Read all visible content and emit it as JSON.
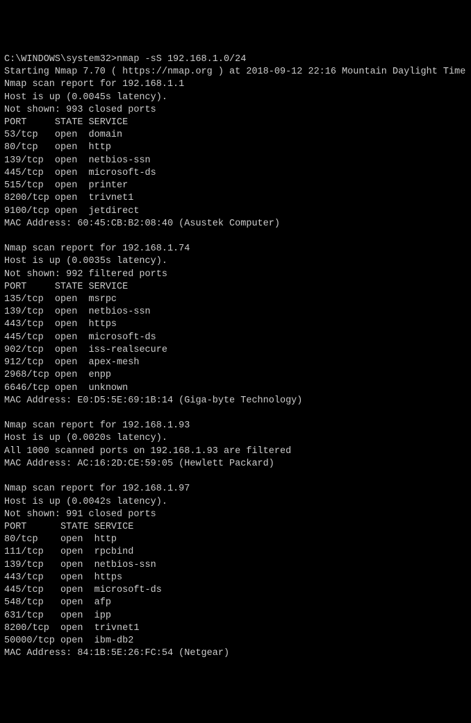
{
  "terminal": {
    "background_color": "#000000",
    "text_color": "#cccccc",
    "font_family": "Consolas, Courier New, monospace",
    "font_size": 13.5,
    "prompt": "C:\\WINDOWS\\system32>",
    "command": "nmap -sS 192.168.1.0/24",
    "start_line": "Starting Nmap 7.70 ( https://nmap.org ) at 2018-09-12 22:16 Mountain Daylight Time",
    "hosts": [
      {
        "report_line": "Nmap scan report for 192.168.1.1",
        "host_up": "Host is up (0.0045s latency).",
        "not_shown": "Not shown: 993 closed ports",
        "header": "PORT     STATE SERVICE",
        "ports": [
          {
            "port": "53/tcp   ",
            "state": "open  ",
            "service": "domain"
          },
          {
            "port": "80/tcp   ",
            "state": "open  ",
            "service": "http"
          },
          {
            "port": "139/tcp  ",
            "state": "open  ",
            "service": "netbios-ssn"
          },
          {
            "port": "445/tcp  ",
            "state": "open  ",
            "service": "microsoft-ds"
          },
          {
            "port": "515/tcp  ",
            "state": "open  ",
            "service": "printer"
          },
          {
            "port": "8200/tcp ",
            "state": "open  ",
            "service": "trivnet1"
          },
          {
            "port": "9100/tcp ",
            "state": "open  ",
            "service": "jetdirect"
          }
        ],
        "mac": "MAC Address: 60:45:CB:B2:08:40 (Asustek Computer)"
      },
      {
        "report_line": "Nmap scan report for 192.168.1.74",
        "host_up": "Host is up (0.0035s latency).",
        "not_shown": "Not shown: 992 filtered ports",
        "header": "PORT     STATE SERVICE",
        "ports": [
          {
            "port": "135/tcp  ",
            "state": "open  ",
            "service": "msrpc"
          },
          {
            "port": "139/tcp  ",
            "state": "open  ",
            "service": "netbios-ssn"
          },
          {
            "port": "443/tcp  ",
            "state": "open  ",
            "service": "https"
          },
          {
            "port": "445/tcp  ",
            "state": "open  ",
            "service": "microsoft-ds"
          },
          {
            "port": "902/tcp  ",
            "state": "open  ",
            "service": "iss-realsecure"
          },
          {
            "port": "912/tcp  ",
            "state": "open  ",
            "service": "apex-mesh"
          },
          {
            "port": "2968/tcp ",
            "state": "open  ",
            "service": "enpp"
          },
          {
            "port": "6646/tcp ",
            "state": "open  ",
            "service": "unknown"
          }
        ],
        "mac": "MAC Address: E0:D5:5E:69:1B:14 (Giga-byte Technology)"
      },
      {
        "report_line": "Nmap scan report for 192.168.1.93",
        "host_up": "Host is up (0.0020s latency).",
        "filtered_line": "All 1000 scanned ports on 192.168.1.93 are filtered",
        "mac": "MAC Address: AC:16:2D:CE:59:05 (Hewlett Packard)"
      },
      {
        "report_line": "Nmap scan report for 192.168.1.97",
        "host_up": "Host is up (0.0042s latency).",
        "not_shown": "Not shown: 991 closed ports",
        "header": "PORT      STATE SERVICE",
        "ports": [
          {
            "port": "80/tcp    ",
            "state": "open  ",
            "service": "http"
          },
          {
            "port": "111/tcp   ",
            "state": "open  ",
            "service": "rpcbind"
          },
          {
            "port": "139/tcp   ",
            "state": "open  ",
            "service": "netbios-ssn"
          },
          {
            "port": "443/tcp   ",
            "state": "open  ",
            "service": "https"
          },
          {
            "port": "445/tcp   ",
            "state": "open  ",
            "service": "microsoft-ds"
          },
          {
            "port": "548/tcp   ",
            "state": "open  ",
            "service": "afp"
          },
          {
            "port": "631/tcp   ",
            "state": "open  ",
            "service": "ipp"
          },
          {
            "port": "8200/tcp  ",
            "state": "open  ",
            "service": "trivnet1"
          },
          {
            "port": "50000/tcp ",
            "state": "open  ",
            "service": "ibm-db2"
          }
        ],
        "mac": "MAC Address: 84:1B:5E:26:FC:54 (Netgear)"
      }
    ]
  }
}
